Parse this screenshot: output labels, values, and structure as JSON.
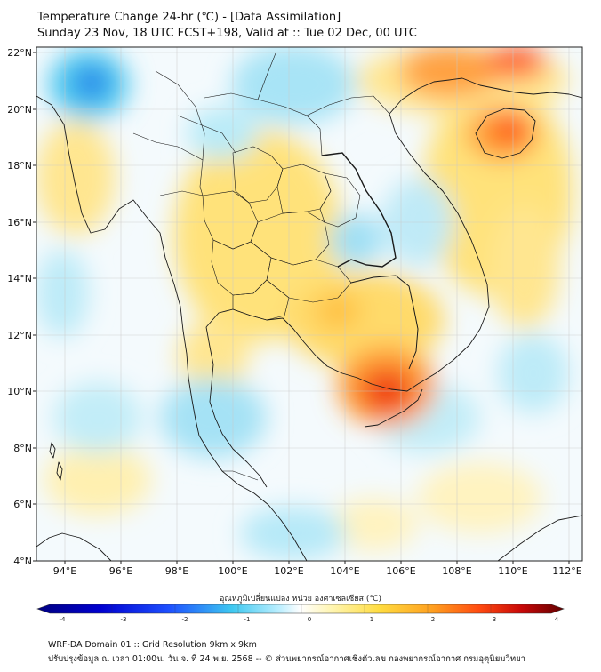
{
  "header": {
    "title_line1": "Temperature Change 24-hr (℃) - [Data Assimilation]",
    "title_line2": "Sunday 23 Nov, 18 UTC FCST+198, Valid at :: Tue 02 Dec, 00 UTC"
  },
  "map": {
    "lon_ticks": [
      "94°E",
      "96°E",
      "98°E",
      "100°E",
      "102°E",
      "104°E",
      "106°E",
      "108°E",
      "110°E",
      "112°E"
    ],
    "lat_ticks": [
      "22°N",
      "20°N",
      "18°N",
      "16°N",
      "14°N",
      "12°N",
      "10°N",
      "8°N",
      "6°N",
      "4°N"
    ],
    "lon_range": [
      93,
      112.5
    ],
    "lat_range": [
      4,
      22.2
    ],
    "variable": "24-hr temperature change",
    "notable_areas": [
      "Cambodia / Mekong delta warming up to ~3℃",
      "Hainan warming ~3℃",
      "Northern Myanmar cooling ~ -2.5℃"
    ]
  },
  "colorbar": {
    "label": "อุณหภูมิเปลี่ยนแปลง หน่วย องศาเซลเซียส (℃)",
    "ticks": [
      "-4",
      "-3",
      "-2",
      "-1",
      "0",
      "1",
      "2",
      "3",
      "4"
    ],
    "min": -4,
    "max": 4,
    "colors": [
      "#000080",
      "#0000c8",
      "#1e3cff",
      "#2b83ff",
      "#40c8f0",
      "#b4ecff",
      "#ffffff",
      "#fff6b0",
      "#ffe050",
      "#ffb030",
      "#ff6a10",
      "#e81010",
      "#a00000",
      "#600000"
    ]
  },
  "footer": {
    "line1": "WRF-DA Domain 01 :: Grid Resolution 9km x 9km",
    "line2": "ปรับปรุงข้อมูล ณ เวลา 01:00น. วัน จ. ที่ 24 พ.ย. 2568 -- © ส่วนพยากรณ์อากาศเชิงตัวเลข กองพยากรณ์อากาศ กรมอุตุนิยมวิทยา"
  }
}
